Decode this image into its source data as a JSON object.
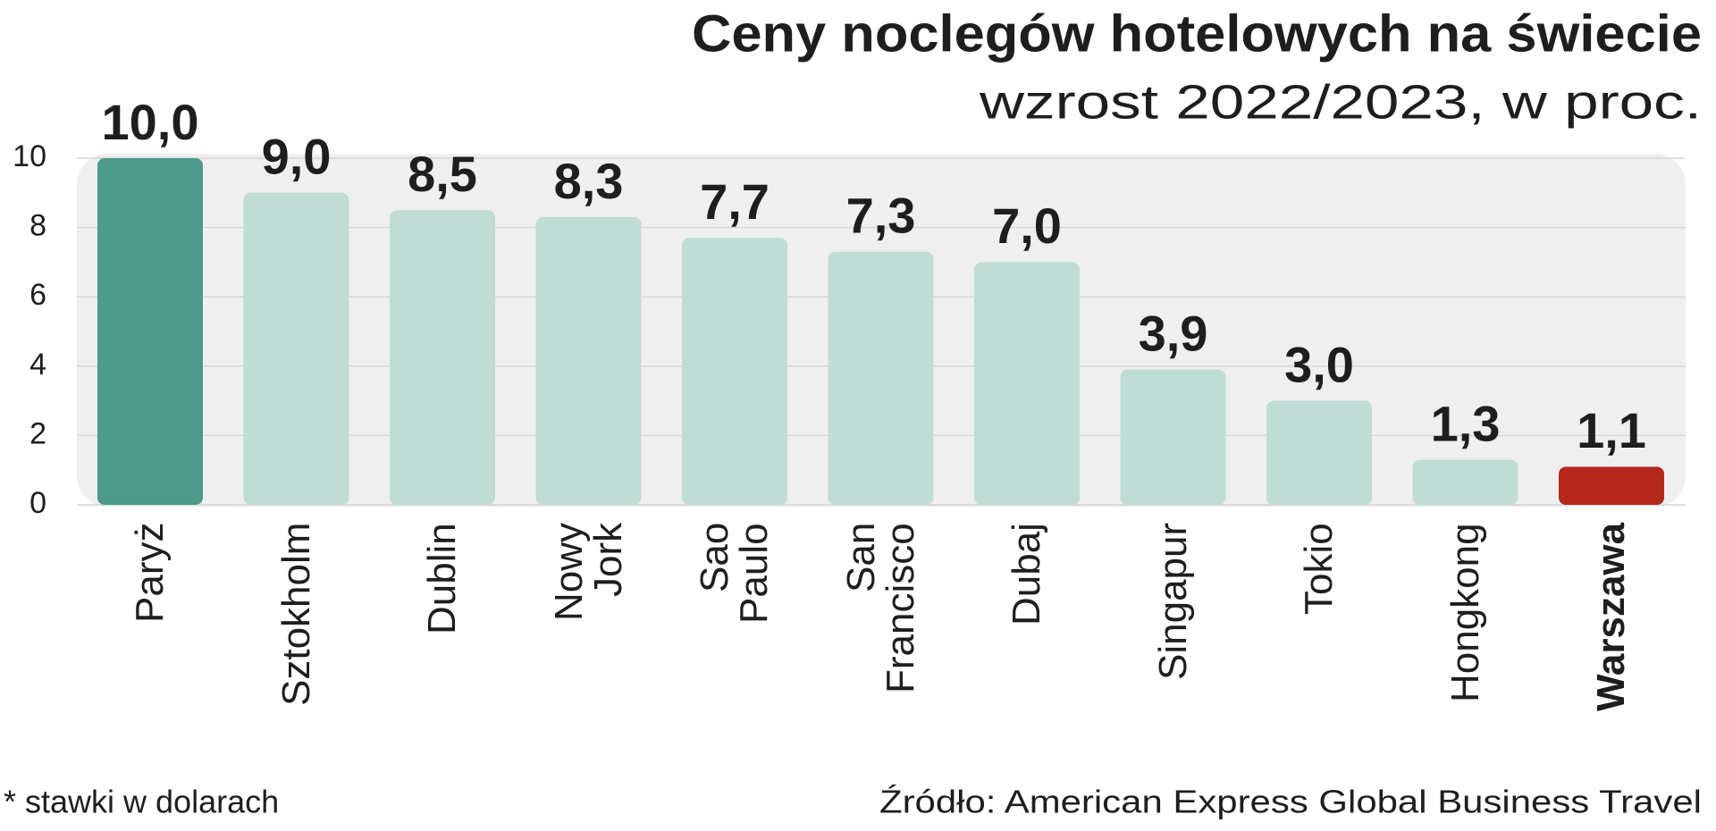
{
  "chart_data": {
    "type": "bar",
    "title": "Ceny noclegów hotelowych na świecie",
    "subtitle": "wzrost 2022/2023, w proc.",
    "categories": [
      "Paryż",
      "Sztokholm",
      "Dublin",
      "Nowy\nJork",
      "Sao\nPaulo",
      "San\nFrancisco",
      "Dubaj",
      "Singapur",
      "Tokio",
      "Hongkong",
      "Warszawa"
    ],
    "values": [
      10.0,
      9.0,
      8.5,
      8.3,
      7.7,
      7.3,
      7.0,
      3.9,
      3.0,
      1.3,
      1.1
    ],
    "value_labels": [
      "10,0",
      "9,0",
      "8,5",
      "8,3",
      "7,7",
      "7,3",
      "7,0",
      "3,9",
      "3,0",
      "1,3",
      "1,1"
    ],
    "colors": [
      "#4e9a8a",
      "#c0ddd5",
      "#c0ddd5",
      "#c0ddd5",
      "#c0ddd5",
      "#c0ddd5",
      "#c0ddd5",
      "#c0ddd5",
      "#c0ddd5",
      "#c0ddd5",
      "#b5281e"
    ],
    "ylim": [
      0,
      10
    ],
    "yticks": [
      0,
      2,
      4,
      6,
      8,
      10
    ],
    "grid": true,
    "note": "* stawki w dolarach",
    "source": "Źródło: American Express Global  Business Travel"
  }
}
